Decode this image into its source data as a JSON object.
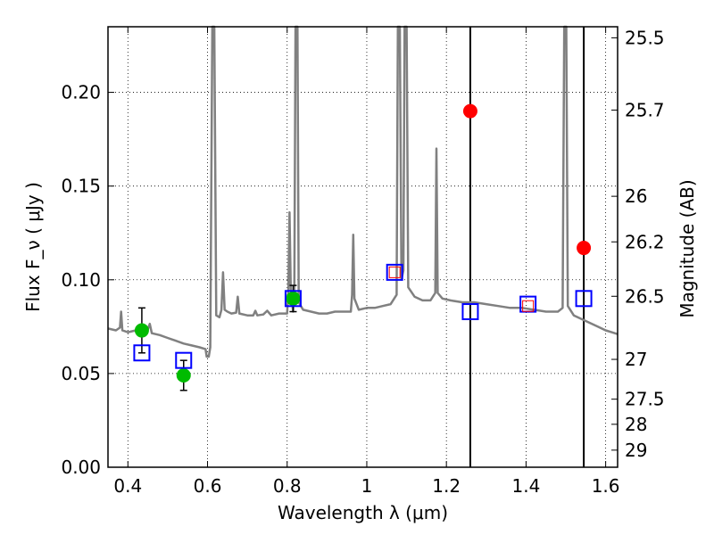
{
  "chart_data": {
    "type": "scatter",
    "xlabel": "Wavelength  λ (μm)",
    "ylabel": "Flux  F_ν  ( μJy )",
    "y2label": "Magnitude (AB)",
    "xlim": [
      0.35,
      1.63
    ],
    "ylim": [
      0.0,
      0.235
    ],
    "grid": true,
    "grid_style": "dotted",
    "x_ticks": [
      {
        "v": 0.4,
        "label": "0.4"
      },
      {
        "v": 0.6,
        "label": "0.6"
      },
      {
        "v": 0.8,
        "label": "0.8"
      },
      {
        "v": 1.0,
        "label": "1"
      },
      {
        "v": 1.2,
        "label": "1.2"
      },
      {
        "v": 1.4,
        "label": "1.4"
      },
      {
        "v": 1.6,
        "label": "1.6"
      }
    ],
    "y_ticks": [
      {
        "v": 0.0,
        "label": "0.00"
      },
      {
        "v": 0.05,
        "label": "0.05"
      },
      {
        "v": 0.1,
        "label": "0.10"
      },
      {
        "v": 0.15,
        "label": "0.15"
      },
      {
        "v": 0.2,
        "label": "0.20"
      }
    ],
    "y2_ticks": [
      {
        "mag": 25.5,
        "label": "25.5"
      },
      {
        "mag": 25.7,
        "label": "25.7"
      },
      {
        "mag": 26,
        "label": "26"
      },
      {
        "mag": 26.2,
        "label": "26.2"
      },
      {
        "mag": 26.5,
        "label": "26.5"
      },
      {
        "mag": 27,
        "label": "27"
      },
      {
        "mag": 27.5,
        "label": "27.5"
      },
      {
        "mag": 28,
        "label": "28"
      },
      {
        "mag": 29,
        "label": "29"
      }
    ],
    "vertical_lines": [
      1.26,
      1.545
    ],
    "model_spectrum": {
      "color": "#808080",
      "points": [
        [
          0.35,
          0.074
        ],
        [
          0.37,
          0.073
        ],
        [
          0.38,
          0.0745
        ],
        [
          0.383,
          0.083
        ],
        [
          0.386,
          0.073
        ],
        [
          0.4,
          0.072
        ],
        [
          0.42,
          0.073
        ],
        [
          0.44,
          0.072
        ],
        [
          0.45,
          0.0735
        ],
        [
          0.455,
          0.0765
        ],
        [
          0.46,
          0.0715
        ],
        [
          0.48,
          0.0705
        ],
        [
          0.5,
          0.069
        ],
        [
          0.52,
          0.0675
        ],
        [
          0.54,
          0.066
        ],
        [
          0.56,
          0.065
        ],
        [
          0.58,
          0.064
        ],
        [
          0.595,
          0.063
        ],
        [
          0.598,
          0.059
        ],
        [
          0.603,
          0.059
        ],
        [
          0.607,
          0.064
        ],
        [
          0.612,
          0.235
        ],
        [
          0.617,
          0.235
        ],
        [
          0.622,
          0.081
        ],
        [
          0.63,
          0.08
        ],
        [
          0.635,
          0.084
        ],
        [
          0.639,
          0.104
        ],
        [
          0.643,
          0.084
        ],
        [
          0.65,
          0.083
        ],
        [
          0.66,
          0.082
        ],
        [
          0.672,
          0.0825
        ],
        [
          0.676,
          0.091
        ],
        [
          0.68,
          0.082
        ],
        [
          0.7,
          0.081
        ],
        [
          0.715,
          0.081
        ],
        [
          0.72,
          0.0835
        ],
        [
          0.725,
          0.081
        ],
        [
          0.74,
          0.0815
        ],
        [
          0.75,
          0.0835
        ],
        [
          0.76,
          0.081
        ],
        [
          0.78,
          0.082
        ],
        [
          0.8,
          0.082
        ],
        [
          0.803,
          0.095
        ],
        [
          0.806,
          0.136
        ],
        [
          0.809,
          0.095
        ],
        [
          0.815,
          0.083
        ],
        [
          0.818,
          0.096
        ],
        [
          0.821,
          0.235
        ],
        [
          0.826,
          0.235
        ],
        [
          0.829,
          0.088
        ],
        [
          0.84,
          0.084
        ],
        [
          0.86,
          0.083
        ],
        [
          0.88,
          0.082
        ],
        [
          0.9,
          0.082
        ],
        [
          0.92,
          0.083
        ],
        [
          0.94,
          0.083
        ],
        [
          0.96,
          0.083
        ],
        [
          0.963,
          0.092
        ],
        [
          0.966,
          0.124
        ],
        [
          0.969,
          0.09
        ],
        [
          0.98,
          0.084
        ],
        [
          1.0,
          0.085
        ],
        [
          1.02,
          0.085
        ],
        [
          1.04,
          0.086
        ],
        [
          1.06,
          0.087
        ],
        [
          1.075,
          0.092
        ],
        [
          1.078,
          0.235
        ],
        [
          1.083,
          0.235
        ],
        [
          1.087,
          0.1
        ],
        [
          1.092,
          0.105
        ],
        [
          1.095,
          0.235
        ],
        [
          1.1,
          0.235
        ],
        [
          1.104,
          0.096
        ],
        [
          1.12,
          0.091
        ],
        [
          1.14,
          0.089
        ],
        [
          1.16,
          0.089
        ],
        [
          1.172,
          0.093
        ],
        [
          1.175,
          0.17
        ],
        [
          1.178,
          0.093
        ],
        [
          1.19,
          0.09
        ],
        [
          1.21,
          0.089
        ],
        [
          1.24,
          0.088
        ],
        [
          1.27,
          0.088
        ],
        [
          1.3,
          0.087
        ],
        [
          1.33,
          0.086
        ],
        [
          1.36,
          0.085
        ],
        [
          1.39,
          0.085
        ],
        [
          1.42,
          0.084
        ],
        [
          1.45,
          0.083
        ],
        [
          1.48,
          0.083
        ],
        [
          1.492,
          0.085
        ],
        [
          1.496,
          0.235
        ],
        [
          1.501,
          0.235
        ],
        [
          1.505,
          0.086
        ],
        [
          1.52,
          0.081
        ],
        [
          1.55,
          0.078
        ],
        [
          1.58,
          0.075
        ],
        [
          1.6,
          0.073
        ],
        [
          1.615,
          0.072
        ],
        [
          1.63,
          0.071
        ]
      ]
    },
    "series": [
      {
        "marker": "circle",
        "color": "#00bb00",
        "points": [
          {
            "x": 0.435,
            "y": 0.073,
            "yerr": 0.012
          },
          {
            "x": 0.54,
            "y": 0.049,
            "yerr": 0.008
          },
          {
            "x": 0.815,
            "y": 0.09,
            "yerr": 0.007
          }
        ]
      },
      {
        "marker": "circle",
        "color": "#ff0000",
        "points": [
          {
            "x": 1.26,
            "y": 0.19
          },
          {
            "x": 1.545,
            "y": 0.117
          }
        ]
      },
      {
        "marker": "open-square",
        "color": "#0000ff",
        "points": [
          {
            "x": 0.435,
            "y": 0.061
          },
          {
            "x": 0.54,
            "y": 0.057
          },
          {
            "x": 0.815,
            "y": 0.09
          },
          {
            "x": 1.07,
            "y": 0.104
          },
          {
            "x": 1.26,
            "y": 0.083
          },
          {
            "x": 1.405,
            "y": 0.087
          },
          {
            "x": 1.545,
            "y": 0.09
          }
        ]
      },
      {
        "marker": "open-square-small",
        "color": "#ff0000",
        "points": [
          {
            "x": 1.07,
            "y": 0.104
          },
          {
            "x": 1.405,
            "y": 0.086
          }
        ]
      }
    ]
  }
}
